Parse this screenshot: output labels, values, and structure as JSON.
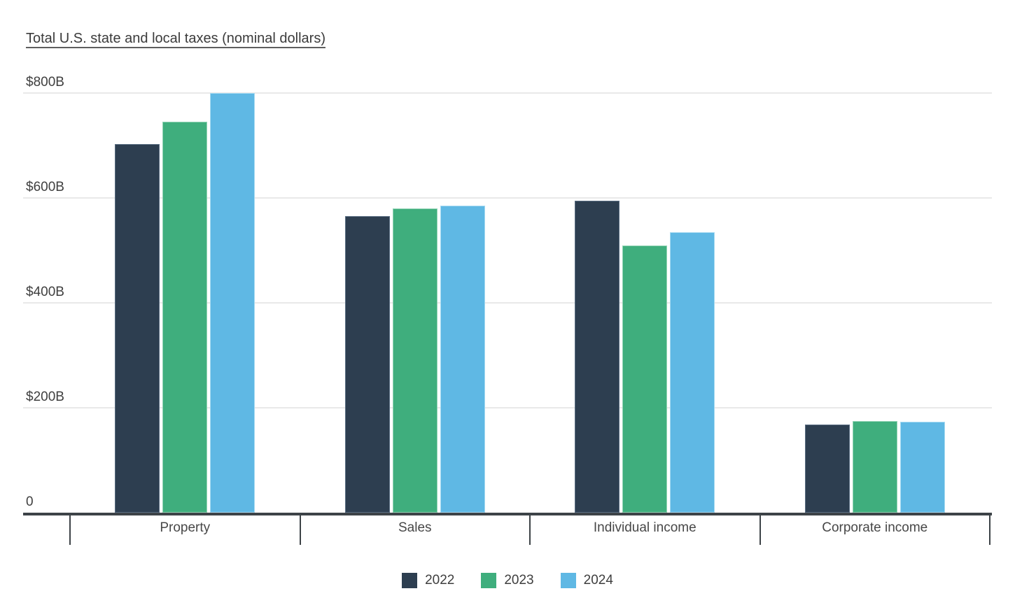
{
  "chart_data": {
    "type": "bar",
    "title": "Total U.S. state and local taxes (nominal dollars)",
    "units": "USD billions (labels shown as $###B)",
    "categories": [
      "Property",
      "Sales",
      "Individual income",
      "Corporate income"
    ],
    "series": [
      {
        "name": "2022",
        "color": "#2d3e50",
        "border_color": "#5a6e83",
        "values": [
          703,
          565,
          595,
          168
        ]
      },
      {
        "name": "2023",
        "color": "#3fae7d",
        "border_color": "#93d4b5",
        "values": [
          745,
          580,
          510,
          175
        ]
      },
      {
        "name": "2024",
        "color": "#5fb8e4",
        "border_color": "#a6daf2",
        "values": [
          800,
          586,
          535,
          174
        ]
      }
    ],
    "y_axis": {
      "ticks": [
        {
          "label": "$800B",
          "value": 800
        },
        {
          "label": "$600B",
          "value": 600
        },
        {
          "label": "$400B",
          "value": 400
        },
        {
          "label": "$200B",
          "value": 200
        },
        {
          "label": "0",
          "value": 0
        }
      ],
      "ylim": [
        0,
        800
      ]
    },
    "grid": true,
    "legend_position": "bottom",
    "legend": [
      "2022",
      "2023",
      "2024"
    ]
  },
  "colors": {
    "background": "#ffffff",
    "gridline": "#e9e9e9",
    "axis": "#3d4347",
    "title_text": "#3b3b3b",
    "label_text": "#3f3f3f"
  }
}
